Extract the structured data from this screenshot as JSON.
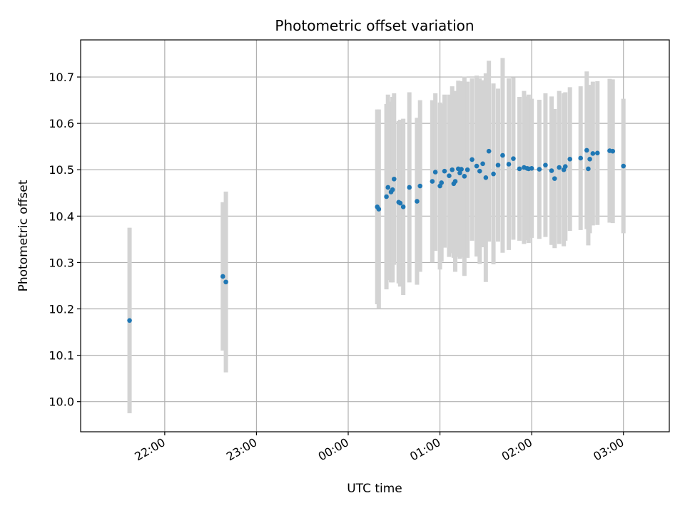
{
  "chart_data": {
    "type": "scatter",
    "title": "Photometric offset variation",
    "xlabel": "UTC time",
    "ylabel": "Photometric offset",
    "x_axis_type": "time",
    "x_start_time": "21:05",
    "x_end_time": "03:30",
    "x_range_minutes": [
      -175,
      210
    ],
    "xticks": [
      "22:00",
      "23:00",
      "00:00",
      "01:00",
      "02:00",
      "03:00"
    ],
    "xtick_minutes": [
      -120,
      -60,
      0,
      60,
      120,
      180
    ],
    "ylim": [
      9.935,
      10.78
    ],
    "yticks": [
      "10.0",
      "10.1",
      "10.2",
      "10.3",
      "10.4",
      "10.5",
      "10.6",
      "10.7"
    ],
    "ytick_values": [
      10.0,
      10.1,
      10.2,
      10.3,
      10.4,
      10.5,
      10.6,
      10.7
    ],
    "grid": true,
    "colors": {
      "point": "#1f77b4",
      "errorbar": "#d3d3d3",
      "grid": "#b0b0b0"
    },
    "series": [
      {
        "times_utc": [
          "21:37",
          "22:38",
          "22:40",
          "00:19",
          "00:20",
          "00:25",
          "00:26",
          "00:28",
          "00:29",
          "00:30",
          "00:33",
          "00:34",
          "00:36",
          "00:40",
          "00:45",
          "00:47",
          "00:55",
          "00:57",
          "01:00",
          "01:01",
          "01:03",
          "01:06",
          "01:08",
          "01:09",
          "01:10",
          "01:12",
          "01:13",
          "01:14",
          "01:16",
          "01:18",
          "01:21",
          "01:24",
          "01:26",
          "01:28",
          "01:30",
          "01:32",
          "01:35",
          "01:38",
          "01:41",
          "01:45",
          "01:48",
          "01:52",
          "01:55",
          "01:57",
          "01:58",
          "02:00",
          "02:05",
          "02:09",
          "02:13",
          "02:15",
          "02:18",
          "02:21",
          "02:22",
          "02:25",
          "02:32",
          "02:36",
          "02:37",
          "02:38",
          "02:40",
          "02:43",
          "02:51",
          "02:53",
          "03:00"
        ],
        "minutes": [
          -143,
          -82,
          -80,
          19,
          20,
          25,
          26,
          28,
          29,
          30,
          33,
          34,
          36,
          40,
          45,
          47,
          55,
          57,
          60,
          61,
          63,
          66,
          68,
          69,
          70,
          72,
          73,
          74,
          76,
          78,
          81,
          84,
          86,
          88,
          90,
          92,
          95,
          98,
          101,
          105,
          108,
          112,
          115,
          117,
          118,
          120,
          125,
          129,
          133,
          135,
          138,
          141,
          142,
          145,
          152,
          156,
          157,
          158,
          160,
          163,
          171,
          173,
          180
        ],
        "y": [
          10.175,
          10.27,
          10.258,
          10.42,
          10.415,
          10.442,
          10.462,
          10.452,
          10.457,
          10.48,
          10.43,
          10.428,
          10.42,
          10.462,
          10.432,
          10.465,
          10.475,
          10.495,
          10.465,
          10.472,
          10.497,
          10.487,
          10.5,
          10.47,
          10.475,
          10.502,
          10.493,
          10.501,
          10.486,
          10.5,
          10.522,
          10.508,
          10.497,
          10.513,
          10.483,
          10.54,
          10.491,
          10.51,
          10.531,
          10.512,
          10.524,
          10.502,
          10.505,
          10.503,
          10.502,
          10.503,
          10.501,
          10.51,
          10.498,
          10.481,
          10.505,
          10.5,
          10.507,
          10.523,
          10.525,
          10.542,
          10.502,
          10.523,
          10.535,
          10.536,
          10.541,
          10.54,
          10.508
        ],
        "yerr": [
          0.2,
          0.16,
          0.195,
          0.21,
          0.215,
          0.2,
          0.2,
          0.195,
          0.2,
          0.185,
          0.175,
          0.18,
          0.19,
          0.205,
          0.18,
          0.185,
          0.175,
          0.17,
          0.18,
          0.17,
          0.165,
          0.175,
          0.18,
          0.16,
          0.195,
          0.19,
          0.185,
          0.19,
          0.215,
          0.19,
          0.175,
          0.195,
          0.2,
          0.18,
          0.225,
          0.195,
          0.195,
          0.165,
          0.21,
          0.185,
          0.175,
          0.155,
          0.165,
          0.155,
          0.16,
          0.15,
          0.15,
          0.155,
          0.16,
          0.15,
          0.165,
          0.165,
          0.16,
          0.155,
          0.155,
          0.17,
          0.165,
          0.16,
          0.155,
          0.155,
          0.155,
          0.155,
          0.145
        ]
      }
    ]
  }
}
